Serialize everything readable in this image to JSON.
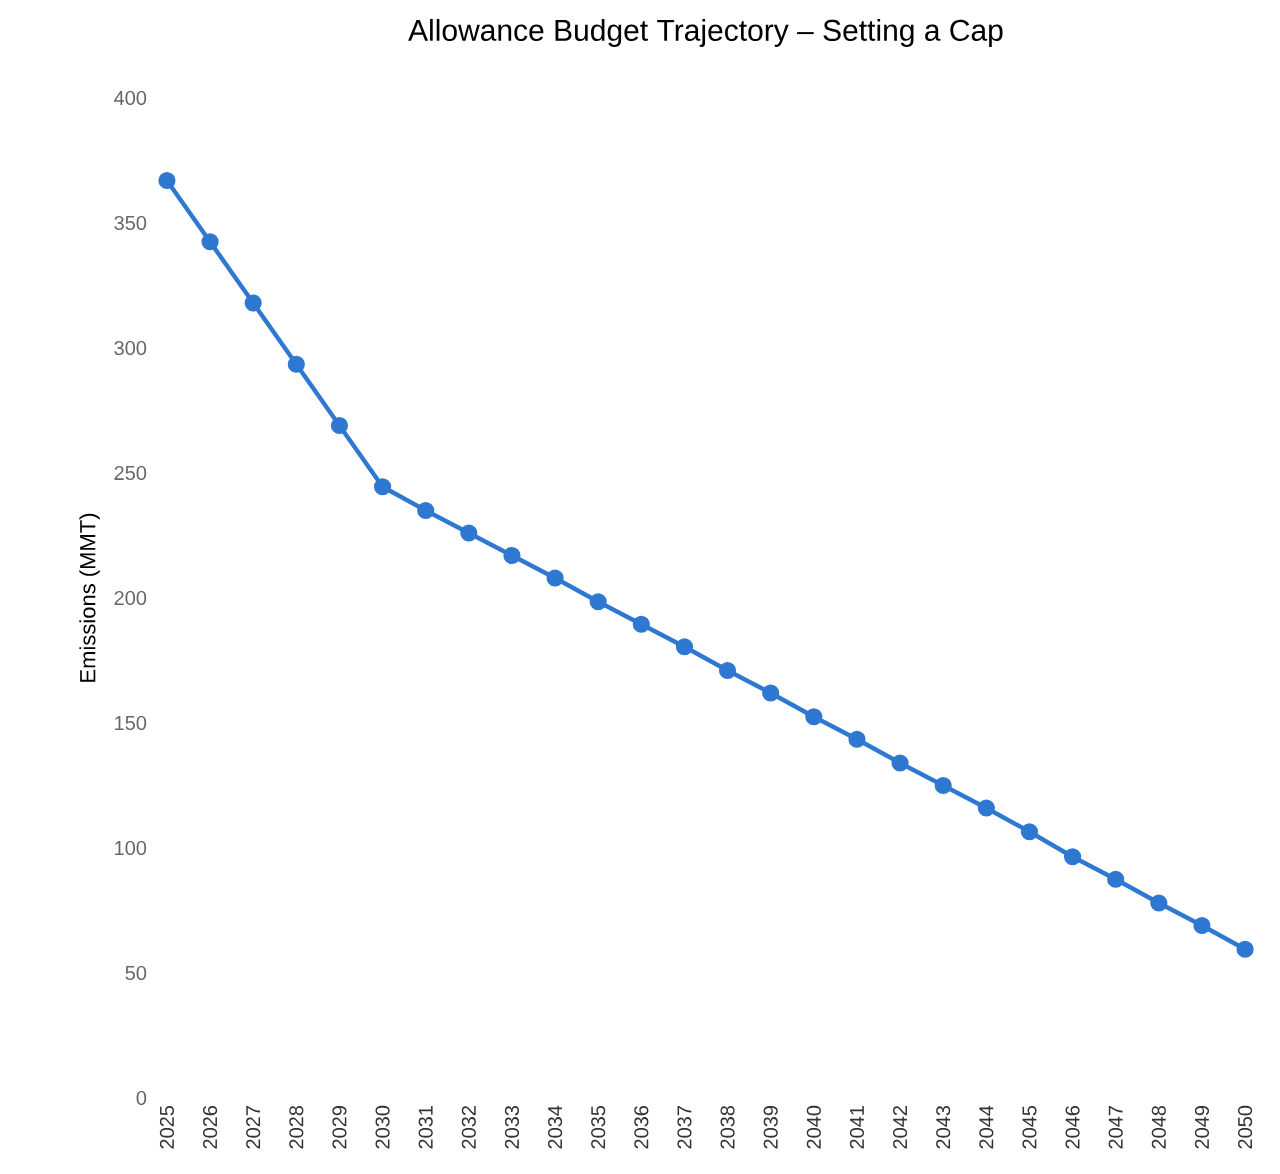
{
  "chart_data": {
    "type": "line",
    "title": "Allowance Budget Trajectory – Setting a Cap",
    "ylabel": "Emissions (MMT)",
    "categories": [
      "2025",
      "2026",
      "2027",
      "2028",
      "2029",
      "2030",
      "2031",
      "2032",
      "2033",
      "2034",
      "2035",
      "2036",
      "2037",
      "2038",
      "2039",
      "2040",
      "2041",
      "2042",
      "2043",
      "2044",
      "2045",
      "2046",
      "2047",
      "2048",
      "2049",
      "2050"
    ],
    "series": [
      {
        "color": "#2e78d2",
        "values": [
          367,
          342.5,
          318,
          293.5,
          269,
          244.5,
          235,
          226,
          217,
          208,
          198.5,
          189.5,
          180.5,
          171,
          162,
          152.5,
          143.5,
          134,
          125,
          116,
          106.5,
          96.5,
          87.5,
          78,
          69,
          59.5
        ]
      }
    ],
    "ylim": [
      0,
      400
    ],
    "yticks": [
      0,
      50,
      100,
      150,
      200,
      250,
      300,
      350,
      400
    ],
    "grid": false,
    "legend": false,
    "marker": "circle",
    "line_style": "solid"
  }
}
